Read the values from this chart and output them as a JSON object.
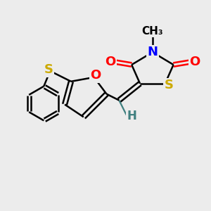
{
  "bg_color": "#ececec",
  "atom_colors": {
    "C": "#000000",
    "N": "#0000ff",
    "O": "#ff0000",
    "S": "#ccaa00",
    "H": "#408080"
  },
  "bond_color": "#000000",
  "bond_width": 1.8,
  "font_size_atom": 13,
  "font_size_small": 11
}
